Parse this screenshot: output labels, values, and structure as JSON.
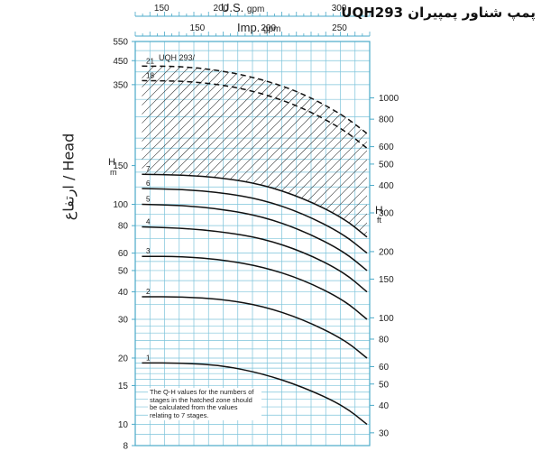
{
  "title": "پمپ شناور پمپیران UQH293",
  "chart_data": {
    "type": "line",
    "model_label": "UQH 293/",
    "ylabel": "ارتفاع / Head",
    "y_unit_left": "m",
    "y_unit_right": "ft",
    "y_label_right": "H",
    "x_top_us": {
      "label": "U.S.",
      "unit": "gpm",
      "ticks": [
        150,
        200,
        300
      ]
    },
    "x_top_imp": {
      "label": "Imp.",
      "unit": "gpm",
      "ticks": [
        150,
        200,
        250
      ]
    },
    "y_scale": "log",
    "ylim": [
      8,
      550
    ],
    "xlim": [
      145,
      320
    ],
    "y_ticks_left": [
      8,
      10,
      15,
      20,
      30,
      40,
      50,
      60,
      80,
      100,
      150,
      350,
      450,
      550
    ],
    "y_ticks_right": [
      30,
      40,
      50,
      60,
      80,
      100,
      150,
      200,
      300,
      400,
      500,
      600,
      800,
      1000
    ],
    "grid": true,
    "hatched_zone": "above stage 7",
    "note": "The Q-H values for the numbers of stages in the hatched zone should be calculated from the values relating to 7 stages.",
    "series": [
      {
        "name": "1",
        "style": "solid",
        "x": [
          150,
          180,
          210,
          240,
          270,
          300,
          318
        ],
        "y": [
          19,
          19,
          18.5,
          17,
          14.8,
          12.2,
          10
        ]
      },
      {
        "name": "2",
        "style": "solid",
        "x": [
          150,
          180,
          210,
          240,
          270,
          300,
          318
        ],
        "y": [
          38,
          38,
          37,
          34.5,
          30,
          24.5,
          20
        ]
      },
      {
        "name": "3",
        "style": "solid",
        "x": [
          150,
          180,
          210,
          240,
          270,
          300,
          318
        ],
        "y": [
          58,
          58,
          56,
          52,
          45.5,
          37,
          30
        ]
      },
      {
        "name": "4",
        "style": "solid",
        "x": [
          150,
          180,
          210,
          240,
          270,
          300,
          318
        ],
        "y": [
          79,
          78,
          75,
          70,
          61,
          49.5,
          40
        ]
      },
      {
        "name": "5",
        "style": "solid",
        "x": [
          150,
          180,
          210,
          240,
          270,
          300,
          318
        ],
        "y": [
          100,
          99,
          95,
          88,
          76,
          61.5,
          50
        ]
      },
      {
        "name": "6",
        "style": "solid",
        "x": [
          150,
          180,
          210,
          240,
          270,
          300,
          318
        ],
        "y": [
          118,
          117,
          113,
          105,
          91,
          73.5,
          60
        ]
      },
      {
        "name": "7",
        "style": "solid",
        "x": [
          150,
          180,
          210,
          240,
          270,
          300,
          318
        ],
        "y": [
          137,
          136,
          132,
          123,
          107,
          87,
          71
        ]
      },
      {
        "name": "18",
        "style": "dashed",
        "x": [
          150,
          180,
          210,
          240,
          270,
          300,
          318
        ],
        "y": [
          365,
          364,
          350,
          320,
          275,
          220,
          180
        ]
      },
      {
        "name": "21",
        "style": "dashed",
        "x": [
          150,
          180,
          210,
          240,
          270,
          300,
          318
        ],
        "y": [
          425,
          424,
          405,
          370,
          320,
          255,
          210
        ]
      }
    ]
  }
}
